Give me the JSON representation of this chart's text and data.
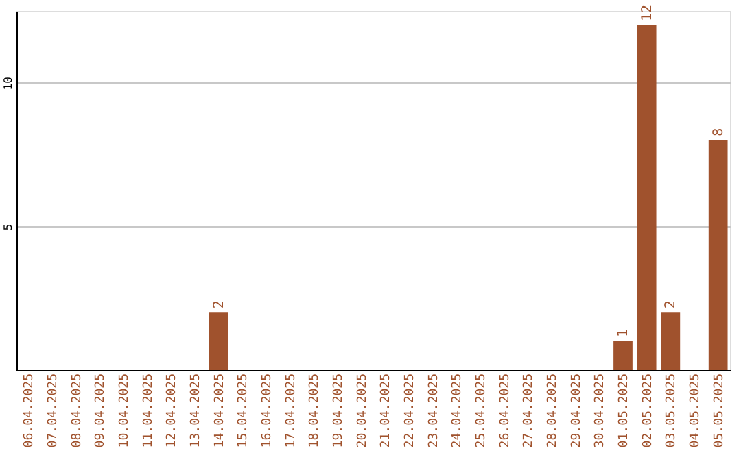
{
  "chart_data": {
    "type": "bar",
    "categories": [
      "06.04.2025",
      "07.04.2025",
      "08.04.2025",
      "09.04.2025",
      "10.04.2025",
      "11.04.2025",
      "12.04.2025",
      "13.04.2025",
      "14.04.2025",
      "15.04.2025",
      "16.04.2025",
      "17.04.2025",
      "18.04.2025",
      "19.04.2025",
      "20.04.2025",
      "21.04.2025",
      "22.04.2025",
      "23.04.2025",
      "24.04.2025",
      "25.04.2025",
      "26.04.2025",
      "27.04.2025",
      "28.04.2025",
      "29.04.2025",
      "30.04.2025",
      "01.05.2025",
      "02.05.2025",
      "03.05.2025",
      "04.05.2025",
      "05.05.2025"
    ],
    "values": [
      0,
      0,
      0,
      0,
      0,
      0,
      0,
      0,
      2,
      0,
      0,
      0,
      0,
      0,
      0,
      0,
      0,
      0,
      0,
      0,
      0,
      0,
      0,
      0,
      0,
      1,
      12,
      2,
      0,
      8
    ],
    "value_labels": [
      null,
      null,
      null,
      null,
      null,
      null,
      null,
      null,
      "2",
      null,
      null,
      null,
      null,
      null,
      null,
      null,
      null,
      null,
      null,
      null,
      null,
      null,
      null,
      null,
      null,
      "1",
      "12",
      "2",
      null,
      "8"
    ],
    "color": "#a0522d",
    "ylim": [
      0,
      12.5
    ],
    "yticks": [
      5,
      10
    ],
    "grid": "y"
  }
}
